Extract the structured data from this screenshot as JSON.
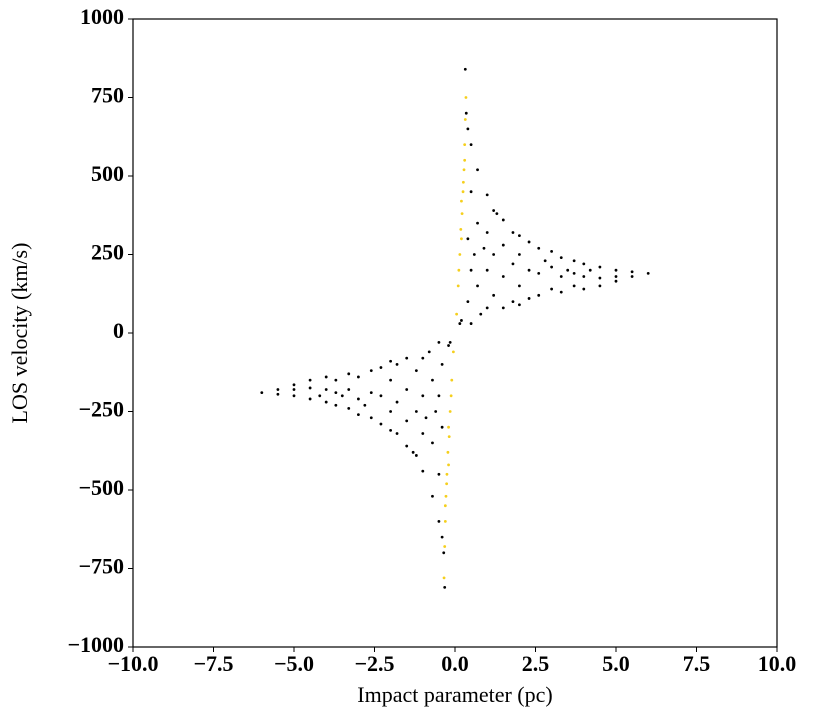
{
  "chart_data": {
    "type": "scatter",
    "x_label": "Impact parameter (pc)",
    "y_label": "LOS velocity (km/s)",
    "xlim": [
      -10,
      10
    ],
    "ylim": [
      -1000,
      1000
    ],
    "xticks": [
      {
        "value": -10,
        "label": "−10.0"
      },
      {
        "value": -7.5,
        "label": "−7.5"
      },
      {
        "value": -5,
        "label": "−5.0"
      },
      {
        "value": -2.5,
        "label": "−2.5"
      },
      {
        "value": 0,
        "label": "0.0"
      },
      2.5,
      {
        "value": 5,
        "label": "5.0"
      },
      7.5,
      {
        "value": 10,
        "label": "10.0"
      }
    ],
    "yticks": [
      {
        "value": -1000,
        "label": "−1000"
      },
      {
        "value": -750,
        "label": "−750"
      },
      {
        "value": -500,
        "label": "−500"
      },
      {
        "value": -250,
        "label": "−250"
      },
      0,
      250,
      500,
      750,
      1000
    ],
    "series": [
      {
        "color": "#000000",
        "x": [
          0.32,
          0.35,
          0.4,
          0.4,
          0.4,
          0.5,
          0.5,
          0.5,
          0.5,
          0.7,
          0.7,
          0.7,
          0.8,
          1,
          1,
          1,
          1,
          1.2,
          1.2,
          1.2,
          1.5,
          1.5,
          1.5,
          1.5,
          1.8,
          1.8,
          1.8,
          2,
          2,
          2,
          2,
          2.3,
          2.3,
          2.3,
          2.6,
          2.6,
          2.6,
          3,
          3,
          3,
          3.3,
          3.3,
          3.3,
          3.7,
          3.7,
          3.7,
          4,
          4,
          4,
          4.5,
          4.5,
          4.5,
          5,
          5,
          5,
          5.5,
          5.5,
          6,
          0.2,
          0.15,
          0.6,
          0.9,
          1.3,
          2.8,
          3.5,
          4.2,
          -0.32,
          -0.35,
          -0.4,
          -0.4,
          -0.4,
          -0.5,
          -0.5,
          -0.5,
          -0.5,
          -0.7,
          -0.7,
          -0.7,
          -0.8,
          -1,
          -1,
          -1,
          -1,
          -1.2,
          -1.2,
          -1.2,
          -1.5,
          -1.5,
          -1.5,
          -1.5,
          -1.8,
          -1.8,
          -1.8,
          -2,
          -2,
          -2,
          -2,
          -2.3,
          -2.3,
          -2.3,
          -2.6,
          -2.6,
          -2.6,
          -3,
          -3,
          -3,
          -3.3,
          -3.3,
          -3.3,
          -3.7,
          -3.7,
          -3.7,
          -4,
          -4,
          -4,
          -4.5,
          -4.5,
          -4.5,
          -5,
          -5,
          -5,
          -5.5,
          -5.5,
          -6,
          -0.2,
          -0.15,
          -0.6,
          -0.9,
          -1.3,
          -2.8,
          -3.5,
          -4.2
        ],
        "values": [
          840,
          700,
          650,
          300,
          100,
          600,
          450,
          200,
          30,
          520,
          350,
          150,
          60,
          440,
          320,
          200,
          80,
          390,
          250,
          120,
          360,
          280,
          180,
          80,
          320,
          220,
          100,
          310,
          250,
          150,
          90,
          290,
          200,
          110,
          270,
          190,
          120,
          260,
          210,
          140,
          240,
          180,
          130,
          230,
          190,
          150,
          220,
          180,
          140,
          210,
          175,
          150,
          200,
          180,
          165,
          195,
          180,
          190,
          40,
          30,
          250,
          270,
          380,
          230,
          200,
          200,
          -810,
          -700,
          -650,
          -300,
          -100,
          -600,
          -450,
          -200,
          -30,
          -520,
          -350,
          -150,
          -60,
          -440,
          -320,
          -200,
          -80,
          -390,
          -250,
          -120,
          -360,
          -280,
          -180,
          -80,
          -320,
          -220,
          -100,
          -310,
          -250,
          -150,
          -90,
          -290,
          -200,
          -110,
          -270,
          -190,
          -120,
          -260,
          -210,
          -140,
          -240,
          -180,
          -130,
          -230,
          -190,
          -150,
          -220,
          -180,
          -140,
          -210,
          -175,
          -150,
          -200,
          -180,
          -165,
          -195,
          -180,
          -190,
          -40,
          -30,
          -250,
          -270,
          -380,
          -230,
          -200,
          -200
        ]
      },
      {
        "color": "#f5cf1d",
        "x": [
          0.05,
          0.1,
          0.15,
          0.2,
          0.22,
          0.25,
          0.28,
          0.3,
          0.32,
          0.34,
          0.12,
          0.18,
          0.26,
          0.3,
          0.2,
          -0.05,
          -0.1,
          -0.15,
          -0.2,
          -0.22,
          -0.25,
          -0.28,
          -0.3,
          -0.32,
          -0.34,
          -0.12,
          -0.18,
          -0.26,
          -0.3,
          -0.2
        ],
        "values": [
          60,
          150,
          250,
          300,
          380,
          450,
          520,
          600,
          680,
          750,
          200,
          330,
          480,
          550,
          420,
          -60,
          -150,
          -250,
          -300,
          -380,
          -450,
          -520,
          -600,
          -680,
          -780,
          -200,
          -330,
          -480,
          -550,
          -420
        ]
      }
    ]
  }
}
